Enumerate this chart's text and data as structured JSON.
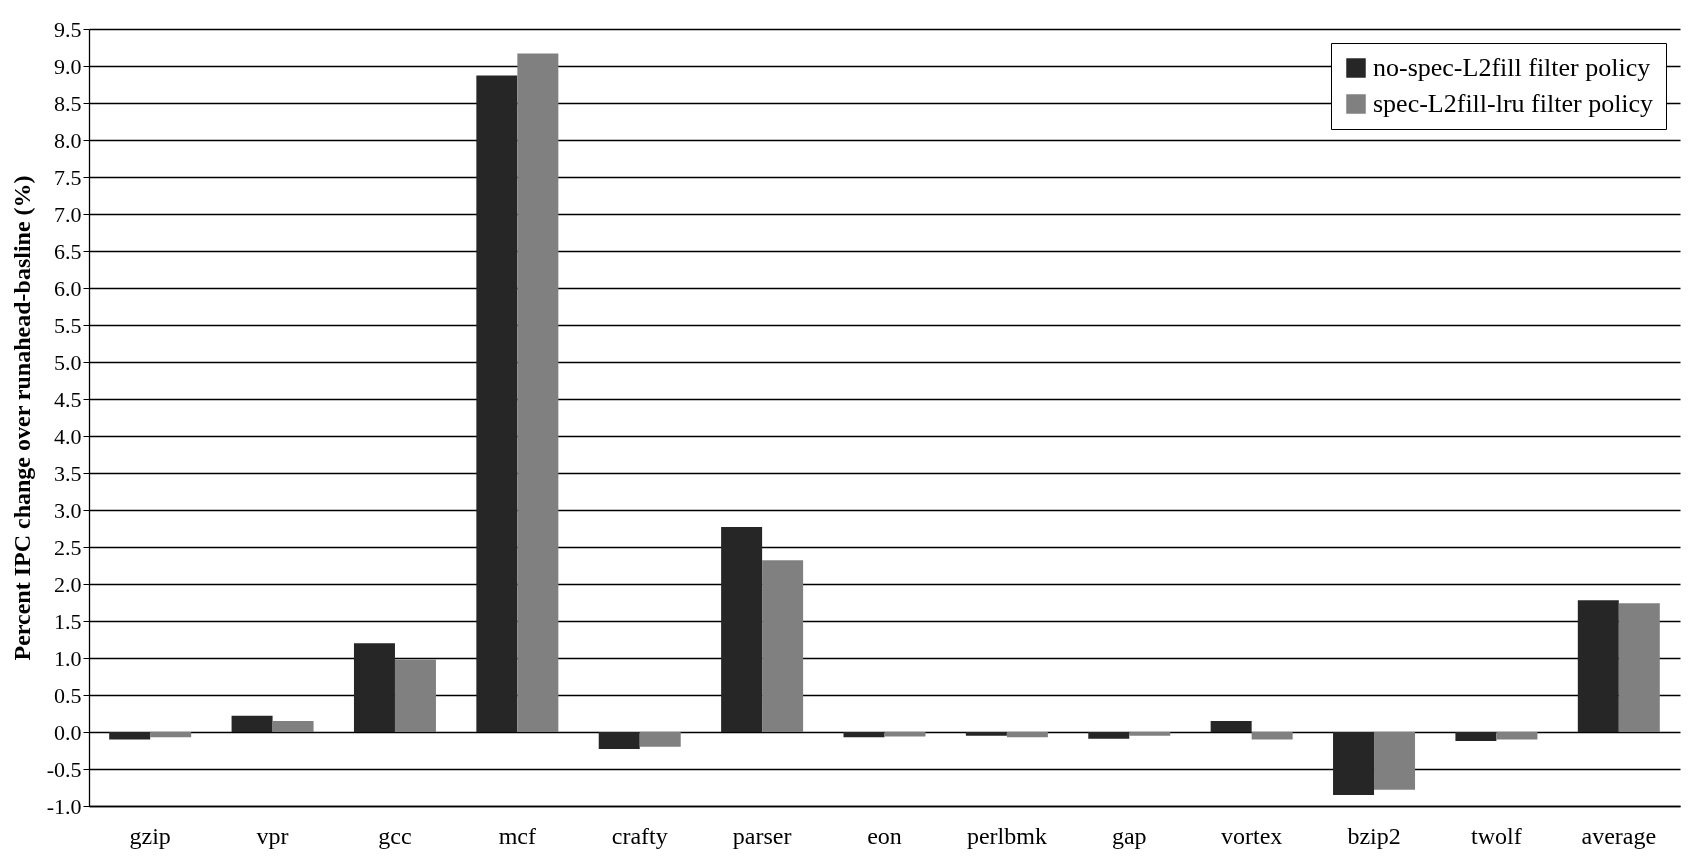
{
  "chart_data": {
    "type": "bar",
    "ylabel": "Percent IPC change over runahead-basline (%)",
    "categories": [
      "gzip",
      "vpr",
      "gcc",
      "mcf",
      "crafty",
      "parser",
      "eon",
      "perlbmk",
      "gap",
      "vortex",
      "bzip2",
      "twolf",
      "average"
    ],
    "series": [
      {
        "name": "no-spec-L2fill filter policy",
        "color": "#262626",
        "values": [
          -0.1,
          0.22,
          1.2,
          8.87,
          -0.23,
          2.77,
          -0.07,
          -0.05,
          -0.09,
          0.15,
          -0.85,
          -0.12,
          1.78
        ]
      },
      {
        "name": "spec-L2fill-lru filter policy",
        "color": "#808080",
        "values": [
          -0.07,
          0.15,
          0.98,
          9.17,
          -0.2,
          2.32,
          -0.06,
          -0.07,
          -0.05,
          -0.1,
          -0.78,
          -0.1,
          1.74
        ]
      }
    ],
    "ylim": [
      -1.0,
      9.5
    ],
    "yticks": [
      {
        "value": -1,
        "label": "-1.0"
      },
      -0.5,
      {
        "value": 0,
        "label": "0.0"
      },
      0.5,
      {
        "value": 1,
        "label": "1.0"
      },
      1.5,
      {
        "value": 2,
        "label": "2.0"
      },
      2.5,
      {
        "value": 3,
        "label": "3.0"
      },
      3.5,
      {
        "value": 4,
        "label": "4.0"
      },
      4.5,
      {
        "value": 5,
        "label": "5.0"
      },
      5.5,
      {
        "value": 6,
        "label": "6.0"
      },
      6.5,
      {
        "value": 7,
        "label": "7.0"
      },
      7.5,
      {
        "value": 8,
        "label": "8.0"
      },
      8.5,
      {
        "value": 9,
        "label": "9.0"
      },
      9.5
    ],
    "grid": "y",
    "legend": "top right"
  }
}
